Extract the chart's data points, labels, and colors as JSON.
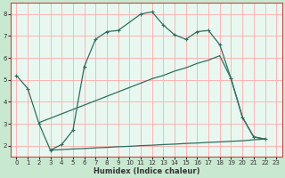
{
  "xlabel": "Humidex (Indice chaleur)",
  "ylabel": "",
  "bg_color": "#c8e8d0",
  "plot_bg_color": "#e8f8f0",
  "grid_color": "#ffaaaa",
  "line_color": "#2e6e5e",
  "border_color": "#cc4444",
  "tick_color": "#333333",
  "xlabel_color": "#333333",
  "xlim": [
    -0.5,
    23.5
  ],
  "ylim": [
    1.5,
    8.5
  ],
  "xticks": [
    0,
    1,
    2,
    3,
    4,
    5,
    6,
    7,
    8,
    9,
    10,
    11,
    12,
    13,
    14,
    15,
    16,
    17,
    18,
    19,
    20,
    21,
    22,
    23
  ],
  "yticks": [
    2,
    3,
    4,
    5,
    6,
    7,
    8
  ],
  "curve1_x": [
    0,
    1,
    2,
    3,
    4,
    5,
    6,
    7,
    8,
    9,
    11,
    12,
    13,
    14,
    15,
    16,
    17,
    18,
    19,
    20,
    21,
    22
  ],
  "curve1_y": [
    5.2,
    4.6,
    3.0,
    1.8,
    2.05,
    2.7,
    5.6,
    6.85,
    7.2,
    7.25,
    8.0,
    8.1,
    7.5,
    7.05,
    6.85,
    7.2,
    7.25,
    6.6,
    5.05,
    3.3,
    2.4,
    2.3
  ],
  "curve2_x": [
    2,
    3,
    4,
    5,
    6,
    7,
    8,
    9,
    10,
    11,
    12,
    13,
    14,
    15,
    16,
    17,
    18,
    19,
    20,
    21,
    22
  ],
  "curve2_y": [
    3.05,
    3.25,
    3.45,
    3.65,
    3.85,
    4.05,
    4.25,
    4.45,
    4.65,
    4.85,
    5.05,
    5.2,
    5.4,
    5.55,
    5.75,
    5.9,
    6.1,
    5.05,
    3.3,
    2.4,
    2.3
  ],
  "curve3_x": [
    3,
    4,
    5,
    6,
    7,
    8,
    9,
    10,
    11,
    12,
    13,
    14,
    15,
    16,
    17,
    18,
    19,
    20,
    21,
    22
  ],
  "curve3_y": [
    1.8,
    1.82,
    1.85,
    1.87,
    1.9,
    1.92,
    1.95,
    1.97,
    2.0,
    2.02,
    2.05,
    2.07,
    2.1,
    2.12,
    2.15,
    2.17,
    2.2,
    2.22,
    2.27,
    2.3
  ]
}
